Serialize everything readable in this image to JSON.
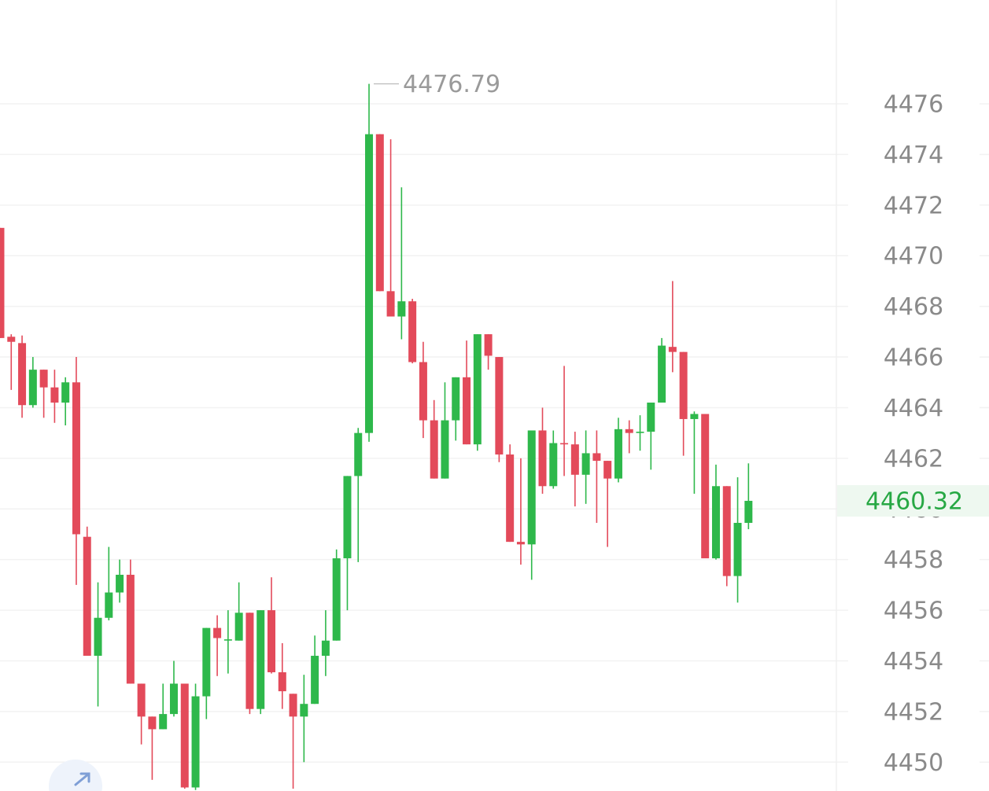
{
  "chart_data": {
    "type": "candlestick",
    "up_color": "#2eb84b",
    "down_color": "#e34a5a",
    "ylim": [
      4448.86,
      4480.1
    ],
    "yticks": [
      4450,
      4452,
      4454,
      4456,
      4458,
      4460,
      4462,
      4464,
      4466,
      4468,
      4470,
      4472,
      4474,
      4476
    ],
    "grid": true,
    "open": [
      4471.1,
      4466.8,
      4466.55,
      4464.1,
      4465.5,
      4464.8,
      4464.2,
      4465.0,
      4458.9,
      4454.2,
      4455.7,
      4456.7,
      4457.4,
      4453.1,
      4451.8,
      4451.3,
      4451.9,
      4453.1,
      4449.0,
      4452.6,
      4455.3,
      4454.8,
      4454.8,
      4455.9,
      4452.1,
      4456.0,
      4453.55,
      4452.7,
      4451.8,
      4452.3,
      4454.2,
      4454.8,
      4458.05,
      4461.3,
      4463.0,
      4474.8,
      4468.6,
      4467.6,
      4468.2,
      4465.8,
      4463.5,
      4461.2,
      4463.5,
      4465.2,
      4462.55,
      4466.9,
      4466.0,
      4462.15,
      4458.7,
      4458.6,
      4463.1,
      4460.9,
      4462.6,
      4462.55,
      4461.35,
      4462.2,
      4461.9,
      4461.2,
      4463.15,
      4463.0,
      4463.05,
      4464.2,
      4466.4,
      4466.2,
      4463.55,
      4463.75,
      4458.05,
      4460.9,
      4457.35,
      4459.45
    ],
    "high": [
      4471.1,
      4466.9,
      4466.85,
      4466.0,
      4465.5,
      4465.5,
      4465.2,
      4466.0,
      4459.3,
      4457.1,
      4458.5,
      4458.0,
      4458.0,
      4453.1,
      4451.8,
      4453.1,
      4454.0,
      4453.1,
      4453.1,
      4455.3,
      4455.8,
      4456.0,
      4457.1,
      4455.9,
      4456.0,
      4457.3,
      4454.7,
      4452.7,
      4453.45,
      4455.0,
      4456.0,
      4458.4,
      4461.3,
      4463.2,
      4476.79,
      4474.8,
      4474.6,
      4472.7,
      4468.3,
      4466.6,
      4464.3,
      4465.0,
      4465.2,
      4466.65,
      4466.9,
      4466.9,
      4466.0,
      4462.55,
      4462.0,
      4463.1,
      4464.0,
      4463.1,
      4465.65,
      4463.05,
      4463.1,
      4463.1,
      4461.9,
      4463.6,
      4463.5,
      4463.7,
      4464.2,
      4466.75,
      4469.0,
      4466.2,
      4463.85,
      4463.75,
      4461.75,
      4460.9,
      4461.25,
      4461.8
    ],
    "low": [
      4466.75,
      4464.7,
      4463.6,
      4464.0,
      4463.6,
      4463.4,
      4463.3,
      4457.0,
      4454.2,
      4452.2,
      4455.6,
      4456.3,
      4453.1,
      4450.7,
      4449.3,
      4451.3,
      4451.8,
      4448.95,
      4448.9,
      4451.7,
      4453.4,
      4453.5,
      4454.8,
      4451.9,
      4451.9,
      4453.5,
      4452.1,
      4448.95,
      4450.0,
      4452.3,
      4453.4,
      4454.8,
      4456.0,
      4457.9,
      4462.65,
      4468.6,
      4467.6,
      4466.7,
      4465.75,
      4462.8,
      4461.2,
      4461.2,
      4462.7,
      4462.55,
      4462.3,
      4465.5,
      4461.85,
      4458.7,
      4457.8,
      4457.2,
      4460.6,
      4460.8,
      4461.3,
      4460.1,
      4460.2,
      4459.45,
      4458.5,
      4461.05,
      4462.2,
      4462.3,
      4461.55,
      4464.2,
      4465.4,
      4462.1,
      4460.6,
      4458.05,
      4458.0,
      4456.95,
      4456.3,
      4459.2
    ],
    "close": [
      4466.75,
      4466.6,
      4464.1,
      4465.5,
      4464.8,
      4464.2,
      4465.0,
      4459.0,
      4454.2,
      4455.7,
      4456.7,
      4457.4,
      4453.1,
      4451.8,
      4451.3,
      4451.9,
      4453.1,
      4449.0,
      4452.6,
      4455.3,
      4454.9,
      4454.85,
      4455.9,
      4452.1,
      4456.0,
      4453.55,
      4452.8,
      4451.8,
      4452.3,
      4454.2,
      4454.8,
      4458.05,
      4461.3,
      4463.0,
      4474.8,
      4468.6,
      4467.6,
      4468.2,
      4465.8,
      4463.5,
      4461.2,
      4463.5,
      4465.2,
      4462.55,
      4466.9,
      4466.05,
      4462.15,
      4458.7,
      4458.6,
      4463.1,
      4460.9,
      4462.6,
      4462.55,
      4461.35,
      4462.2,
      4461.9,
      4461.2,
      4463.15,
      4463.0,
      4463.05,
      4464.2,
      4466.45,
      4466.2,
      4463.55,
      4463.75,
      4458.05,
      4460.9,
      4457.35,
      4459.45,
      4460.32
    ]
  }
}
